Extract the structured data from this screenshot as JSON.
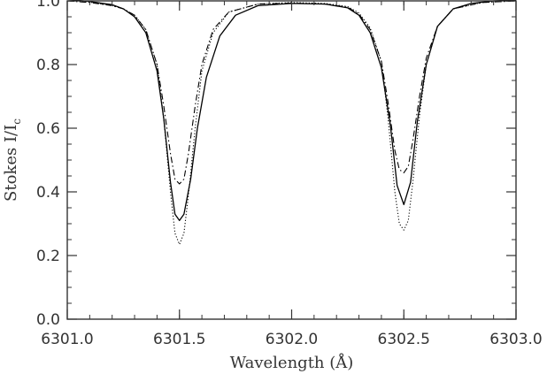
{
  "chart_data": {
    "type": "line",
    "xlabel": "Wavelength (Å)",
    "ylabel": "Stokes I/I",
    "ylabel_subscript": "c",
    "xlim": [
      6301.0,
      6303.0
    ],
    "ylim": [
      0.0,
      1.0
    ],
    "x_ticks": [
      6301.0,
      6301.5,
      6302.0,
      6302.5,
      6303.0
    ],
    "x_tick_labels": [
      "6301.0",
      "6301.5",
      "6302.0",
      "6302.5",
      "6303.0"
    ],
    "y_ticks": [
      0.0,
      0.2,
      0.4,
      0.6,
      0.8,
      1.0
    ],
    "y_tick_labels": [
      "0.0",
      "0.2",
      "0.4",
      "0.6",
      "0.8",
      "1.0"
    ],
    "x_minor_step": 0.1,
    "y_minor_step": 0.05,
    "grid": false,
    "legend": "none",
    "colors": {
      "ink": "#000000",
      "axis": "#333333"
    },
    "series": [
      {
        "style": "solid",
        "points": [
          [
            6301.0,
            1.005
          ],
          [
            6301.1,
            0.998
          ],
          [
            6301.2,
            0.988
          ],
          [
            6301.25,
            0.975
          ],
          [
            6301.3,
            0.95
          ],
          [
            6301.35,
            0.9
          ],
          [
            6301.4,
            0.78
          ],
          [
            6301.43,
            0.63
          ],
          [
            6301.46,
            0.43
          ],
          [
            6301.48,
            0.33
          ],
          [
            6301.5,
            0.31
          ],
          [
            6301.52,
            0.33
          ],
          [
            6301.55,
            0.44
          ],
          [
            6301.58,
            0.6
          ],
          [
            6301.62,
            0.76
          ],
          [
            6301.68,
            0.89
          ],
          [
            6301.75,
            0.955
          ],
          [
            6301.85,
            0.985
          ],
          [
            6302.0,
            0.992
          ],
          [
            6302.15,
            0.99
          ],
          [
            6302.25,
            0.978
          ],
          [
            6302.3,
            0.955
          ],
          [
            6302.35,
            0.9
          ],
          [
            6302.4,
            0.79
          ],
          [
            6302.44,
            0.61
          ],
          [
            6302.47,
            0.42
          ],
          [
            6302.5,
            0.36
          ],
          [
            6302.53,
            0.43
          ],
          [
            6302.56,
            0.62
          ],
          [
            6302.6,
            0.8
          ],
          [
            6302.65,
            0.92
          ],
          [
            6302.72,
            0.975
          ],
          [
            6302.8,
            0.992
          ],
          [
            6302.9,
            1.0
          ],
          [
            6303.0,
            1.003
          ]
        ]
      },
      {
        "style": "dotted",
        "points": [
          [
            6301.0,
            1.0
          ],
          [
            6301.1,
            0.996
          ],
          [
            6301.2,
            0.985
          ],
          [
            6301.25,
            0.975
          ],
          [
            6301.3,
            0.955
          ],
          [
            6301.35,
            0.91
          ],
          [
            6301.4,
            0.8
          ],
          [
            6301.43,
            0.63
          ],
          [
            6301.46,
            0.4
          ],
          [
            6301.48,
            0.27
          ],
          [
            6301.5,
            0.235
          ],
          [
            6301.52,
            0.27
          ],
          [
            6301.54,
            0.39
          ],
          [
            6301.57,
            0.6
          ],
          [
            6301.6,
            0.78
          ],
          [
            6301.65,
            0.9
          ],
          [
            6301.72,
            0.965
          ],
          [
            6301.85,
            0.99
          ],
          [
            6302.0,
            0.995
          ],
          [
            6302.15,
            0.992
          ],
          [
            6302.25,
            0.982
          ],
          [
            6302.3,
            0.962
          ],
          [
            6302.35,
            0.915
          ],
          [
            6302.4,
            0.81
          ],
          [
            6302.43,
            0.63
          ],
          [
            6302.46,
            0.4
          ],
          [
            6302.48,
            0.3
          ],
          [
            6302.5,
            0.28
          ],
          [
            6302.52,
            0.31
          ],
          [
            6302.54,
            0.43
          ],
          [
            6302.57,
            0.64
          ],
          [
            6302.6,
            0.8
          ],
          [
            6302.65,
            0.92
          ],
          [
            6302.72,
            0.975
          ],
          [
            6302.85,
            0.995
          ],
          [
            6303.0,
            1.0
          ]
        ]
      },
      {
        "style": "dashed",
        "points": [
          [
            6301.0,
            1.0
          ],
          [
            6301.1,
            0.995
          ],
          [
            6301.2,
            0.985
          ],
          [
            6301.25,
            0.975
          ],
          [
            6301.3,
            0.955
          ],
          [
            6301.35,
            0.91
          ],
          [
            6301.4,
            0.8
          ],
          [
            6301.43,
            0.67
          ],
          [
            6301.46,
            0.52
          ],
          [
            6301.48,
            0.44
          ],
          [
            6301.5,
            0.425
          ],
          [
            6301.52,
            0.44
          ],
          [
            6301.54,
            0.52
          ],
          [
            6301.57,
            0.67
          ],
          [
            6301.6,
            0.8
          ],
          [
            6301.65,
            0.91
          ],
          [
            6301.72,
            0.965
          ],
          [
            6301.85,
            0.99
          ],
          [
            6302.0,
            0.993
          ],
          [
            6302.15,
            0.99
          ],
          [
            6302.25,
            0.98
          ],
          [
            6302.3,
            0.958
          ],
          [
            6302.35,
            0.91
          ],
          [
            6302.4,
            0.81
          ],
          [
            6302.43,
            0.68
          ],
          [
            6302.46,
            0.53
          ],
          [
            6302.48,
            0.47
          ],
          [
            6302.5,
            0.46
          ],
          [
            6302.52,
            0.48
          ],
          [
            6302.54,
            0.56
          ],
          [
            6302.57,
            0.7
          ],
          [
            6302.6,
            0.82
          ],
          [
            6302.65,
            0.92
          ],
          [
            6302.72,
            0.975
          ],
          [
            6302.85,
            0.995
          ],
          [
            6303.0,
            1.0
          ]
        ]
      }
    ]
  }
}
